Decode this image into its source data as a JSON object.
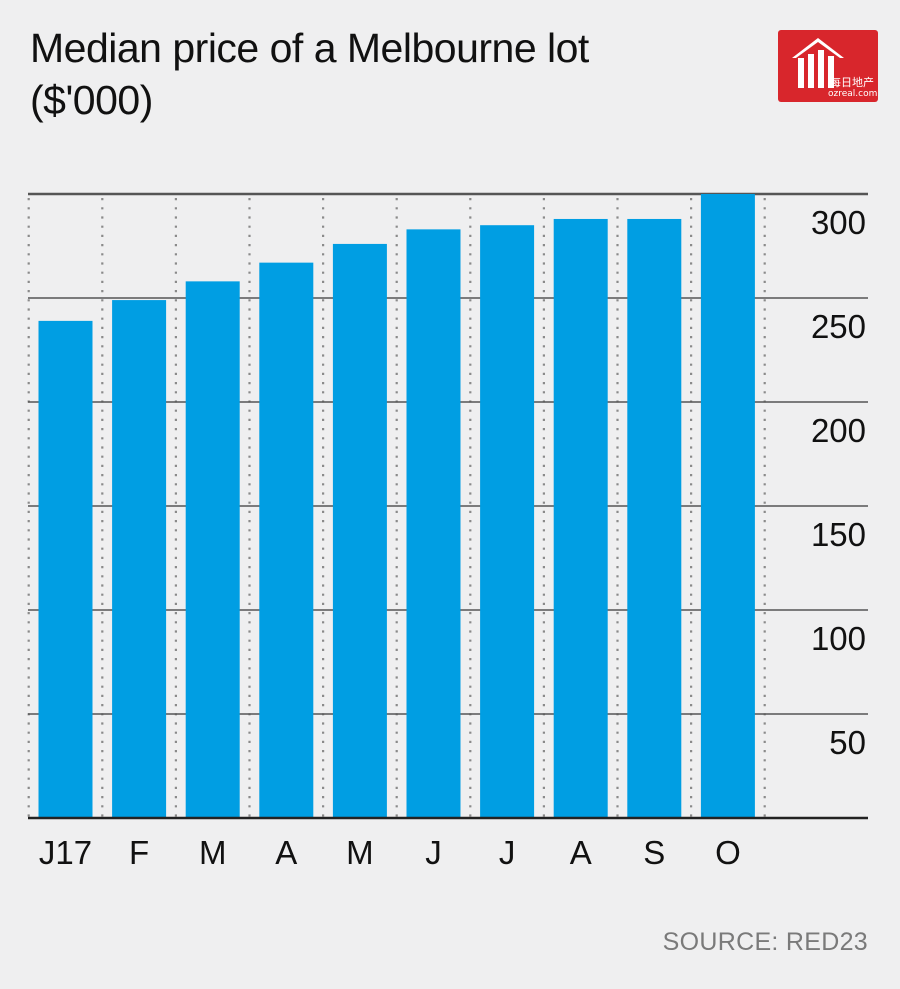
{
  "title_line1": "Median price of a Melbourne lot",
  "title_line2": "($'000)",
  "logo": {
    "icon": "house-logo-icon",
    "text_cn": "每日地产",
    "text_url": "ozreal.com",
    "color": "#d8262c"
  },
  "source": "SOURCE: RED23",
  "colors": {
    "bar": "#009ee3",
    "grid": "#555555",
    "background": "#efeff0"
  },
  "chart_data": {
    "type": "bar",
    "title": "Median price of a Melbourne lot",
    "subtitle": "($'000)",
    "categories": [
      "J17",
      "F",
      "M",
      "A",
      "M",
      "J",
      "J",
      "A",
      "S",
      "O"
    ],
    "values": [
      239,
      249,
      258,
      267,
      276,
      283,
      285,
      288,
      288,
      300
    ],
    "ylim": [
      0,
      300
    ],
    "yticks": [
      50,
      100,
      150,
      200,
      250,
      300
    ],
    "y_axis_side": "right",
    "grid": true,
    "legend": "none"
  }
}
